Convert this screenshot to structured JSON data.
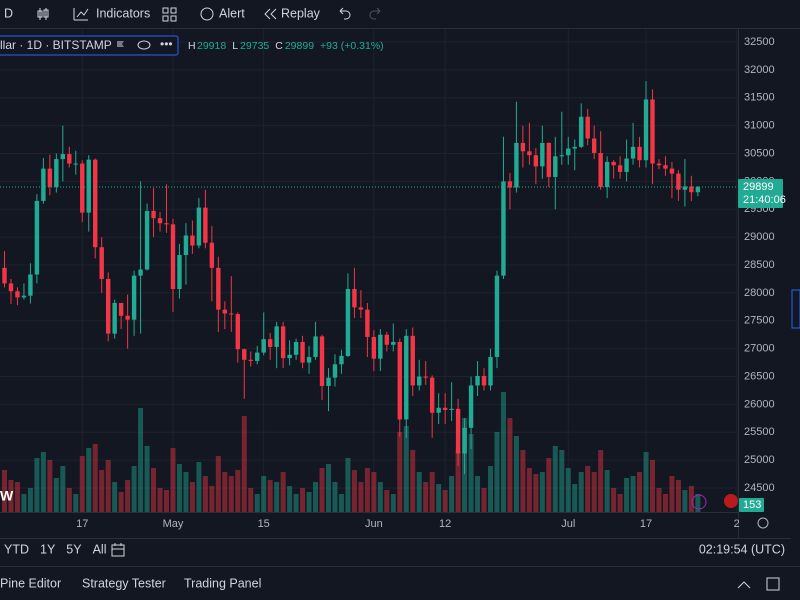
{
  "ui": {
    "interval": "D",
    "indicators": "Indicators",
    "alert": "Alert",
    "replay": "Replay",
    "symbol": "llar · 1D · BITSTAMP",
    "h_label": "H",
    "l_label": "L",
    "c_label": "C",
    "change": "+93 (+0.31%)",
    "last_price": "29899",
    "countdown": "21:40:06",
    "logo": "W",
    "badge": "153",
    "ranges": [
      "YTD",
      "1Y",
      "5Y",
      "All"
    ],
    "clock": "02:19:54 (UTC)",
    "tabs": [
      "Pine Editor",
      "Strategy Tester",
      "Trading Panel"
    ]
  },
  "chart_data": {
    "type": "candlestick",
    "open": [
      28450,
      28170,
      28030,
      27920,
      27950,
      28330,
      29650,
      30230,
      29900,
      30400,
      30490,
      30320,
      30320,
      29440,
      30390,
      28820,
      28250,
      27270,
      27820,
      27590,
      27520,
      28310,
      28420,
      29470,
      29340,
      29250,
      29230,
      28070,
      28680,
      29030,
      28850,
      29530,
      28900,
      28450,
      27700,
      27630,
      27620,
      26990,
      26800,
      26780,
      26930,
      27170,
      27030,
      27400,
      26830,
      26890,
      27120,
      26750,
      26850,
      27220,
      26330,
      26480,
      26720,
      26870,
      28070,
      27740,
      27700,
      27210,
      26820,
      27250,
      27070,
      27120,
      25730,
      27230,
      26340,
      26500,
      26480,
      25850,
      25940,
      25900,
      25920,
      25120,
      25580,
      26340,
      26510,
      26340,
      26850,
      28310,
      30000,
      29890,
      30690,
      30540,
      30470,
      30270,
      30690,
      30080,
      30450,
      30470,
      30590,
      30620,
      31160,
      30770,
      30510,
      29900,
      30350,
      30290,
      30170,
      30410,
      30620,
      30380,
      31470,
      30320,
      30290,
      30230,
      30140,
      29850,
      29910,
      29806
    ],
    "high": [
      28750,
      28250,
      28100,
      28170,
      28530,
      29770,
      30420,
      30480,
      30500,
      31000,
      30620,
      30550,
      30380,
      30470,
      30410,
      29000,
      28370,
      27880,
      27820,
      27970,
      28400,
      30000,
      29600,
      29880,
      29450,
      29950,
      29330,
      28880,
      29250,
      29300,
      29700,
      29850,
      29200,
      28650,
      27850,
      28300,
      27650,
      27000,
      26950,
      27050,
      27650,
      27280,
      27480,
      27480,
      27150,
      27180,
      27230,
      27050,
      27480,
      27250,
      26650,
      26900,
      26980,
      28350,
      28450,
      28050,
      27820,
      27330,
      27350,
      27300,
      27450,
      27180,
      27350,
      27380,
      26800,
      26780,
      26520,
      26200,
      26200,
      26400,
      26100,
      25750,
      26500,
      26780,
      26650,
      27000,
      28400,
      30800,
      30150,
      31430,
      31000,
      31050,
      30600,
      31000,
      30700,
      30800,
      31250,
      30800,
      30750,
      31400,
      31300,
      31000,
      30900,
      30450,
      30380,
      30450,
      30750,
      31050,
      30800,
      31800,
      31650,
      30400,
      30450,
      30350,
      30200,
      30400,
      30100,
      29918
    ],
    "low": [
      28100,
      27800,
      27780,
      27880,
      27810,
      28170,
      29600,
      29750,
      29800,
      30000,
      30250,
      30120,
      29270,
      29100,
      28620,
      28000,
      27130,
      27180,
      27350,
      27000,
      27230,
      27270,
      28400,
      29000,
      29100,
      29080,
      27660,
      27900,
      28150,
      28700,
      28800,
      28800,
      27850,
      27300,
      27350,
      27300,
      26750,
      26100,
      26680,
      26720,
      26880,
      26800,
      26650,
      26650,
      26700,
      26800,
      26650,
      26550,
      26800,
      26080,
      25880,
      26320,
      26550,
      26850,
      27550,
      27550,
      26850,
      26600,
      26600,
      26950,
      26950,
      25420,
      25400,
      26150,
      26250,
      26350,
      25400,
      25650,
      25650,
      25700,
      24900,
      24750,
      25200,
      26150,
      26250,
      26250,
      26650,
      28250,
      29500,
      29800,
      30250,
      30300,
      29950,
      30050,
      29900,
      29500,
      30300,
      30300,
      30200,
      30600,
      30650,
      30400,
      29850,
      29700,
      30050,
      30050,
      30000,
      30300,
      30250,
      30250,
      29950,
      30220,
      30100,
      29700,
      29650,
      29550,
      29650,
      29735
    ],
    "close": [
      28170,
      28030,
      27920,
      27950,
      28330,
      29650,
      30230,
      29900,
      30400,
      30490,
      30320,
      30320,
      29440,
      30390,
      28820,
      28250,
      27270,
      27820,
      27590,
      27520,
      28310,
      28420,
      29470,
      29340,
      29250,
      29230,
      28070,
      28680,
      29030,
      28850,
      29530,
      28900,
      28450,
      27700,
      27630,
      27620,
      26990,
      26800,
      26780,
      26930,
      27170,
      27030,
      27400,
      26830,
      26890,
      27120,
      26750,
      26850,
      27220,
      26330,
      26480,
      26720,
      26870,
      28070,
      27740,
      27700,
      27210,
      26820,
      27250,
      27070,
      27120,
      25730,
      27230,
      26340,
      26500,
      26480,
      25850,
      25940,
      25900,
      25920,
      25120,
      25580,
      26340,
      26510,
      26340,
      26850,
      28310,
      30000,
      29890,
      30690,
      30540,
      30470,
      30270,
      30690,
      30080,
      30450,
      30470,
      30590,
      30620,
      31160,
      30770,
      30510,
      29900,
      30350,
      30290,
      30170,
      30410,
      30620,
      30380,
      31470,
      30320,
      30290,
      30230,
      30140,
      29850,
      29910,
      29806,
      29899
    ],
    "volume": [
      2100,
      1600,
      1500,
      900,
      1200,
      2700,
      3000,
      2600,
      1700,
      2300,
      1200,
      900,
      2800,
      3200,
      3400,
      2100,
      2600,
      1500,
      1000,
      1600,
      2300,
      5200,
      3300,
      2200,
      1200,
      1100,
      3200,
      2400,
      2000,
      1500,
      2500,
      1800,
      1300,
      2800,
      2000,
      1800,
      2100,
      4800,
      1200,
      900,
      1800,
      1600,
      1500,
      2000,
      1300,
      900,
      1200,
      1000,
      1500,
      2200,
      2400,
      1500,
      900,
      2700,
      2100,
      1500,
      2200,
      2000,
      1500,
      1100,
      900,
      4000,
      4300,
      3100,
      2000,
      1500,
      2000,
      1400,
      1100,
      1800,
      3100,
      4700,
      3900,
      1800,
      1200,
      2300,
      4000,
      6000,
      4700,
      3800,
      3100,
      2200,
      1900,
      2000,
      2700,
      3300,
      3100,
      2200,
      1400,
      2000,
      2300,
      2000,
      3100,
      2100,
      1200,
      900,
      1700,
      1800,
      2000,
      3000,
      2600,
      1200,
      900,
      1800,
      1600,
      1100,
      1300,
      900
    ],
    "up_color": "#22ab94",
    "down_color": "#f23645",
    "ylim": [
      24070,
      32680
    ],
    "yticks": [
      24500,
      25000,
      25500,
      26000,
      26500,
      27000,
      27500,
      28000,
      28500,
      29000,
      29500,
      30000,
      30500,
      31000,
      31500,
      32000,
      32500
    ],
    "xticks": [
      {
        "value": 12,
        "label": "17"
      },
      {
        "value": 26,
        "label": "May"
      },
      {
        "value": 40,
        "label": "15"
      },
      {
        "value": 57,
        "label": "Jun"
      },
      {
        "value": 68,
        "label": "12"
      },
      {
        "value": 87,
        "label": "Jul"
      },
      {
        "value": 99,
        "label": "17"
      },
      {
        "value": 113,
        "label": "2"
      }
    ],
    "grid": true
  }
}
